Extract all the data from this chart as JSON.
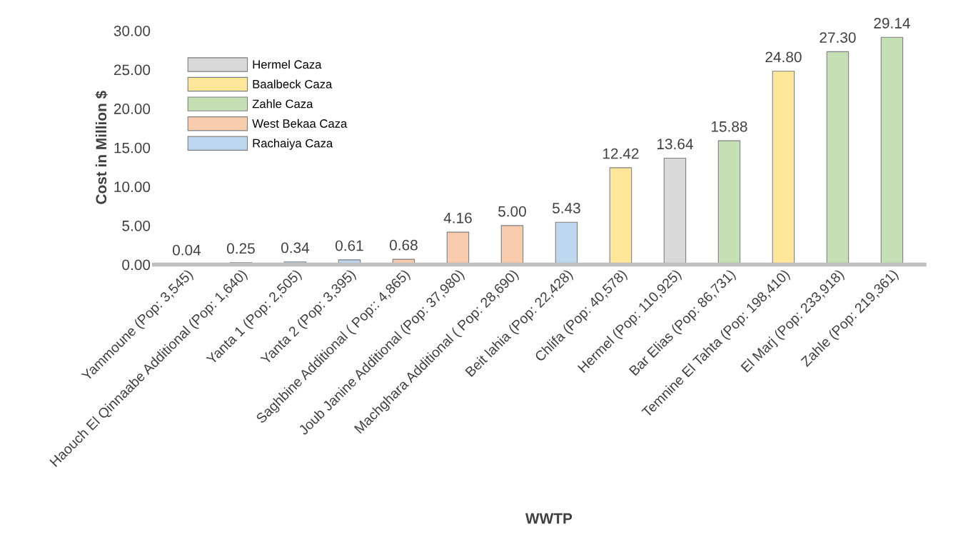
{
  "chart_data": {
    "type": "bar",
    "stacked": true,
    "xlabel": "WWTP",
    "ylabel": "Cost in Million $",
    "categories": [
      "Yammoune (Pop: 3,545)",
      "Haouch El Qinnaabe Additional (Pop: 1,640)",
      "Yanta 1 (Pop: 2,505)",
      "Yanta 2 (Pop: 3,395)",
      "Saghbine Additional ( Pop:: 4,865)",
      "Joub Janine Additional (Pop: 37,980)",
      "Machghara Additional ( Pop: 28,690)",
      "Beit lahia (Pop: 22,428)",
      "Chlifa (Pop: 40,578)",
      "Hermel (Pop: 110,925)",
      "Bar Elias (Pop: 86,731)",
      "Temnine El Tahta (Pop: 198,410)",
      "El Marj (Pop: 233,918)",
      "Zahle (Pop: 219,361)"
    ],
    "series": [
      {
        "name": "Hermel Caza",
        "color": "#d9d9d9",
        "values": [
          null,
          null,
          null,
          null,
          null,
          null,
          null,
          null,
          null,
          13.64,
          null,
          null,
          null,
          null
        ],
        "value_labels": [
          null,
          null,
          null,
          null,
          null,
          null,
          null,
          null,
          null,
          "13.64",
          null,
          null,
          null,
          null
        ]
      },
      {
        "name": "Baalbeck Caza",
        "color": "#ffe699",
        "values": [
          0.04,
          null,
          null,
          null,
          null,
          null,
          null,
          null,
          12.42,
          null,
          null,
          24.8,
          null,
          null
        ],
        "value_labels": [
          "0.04",
          null,
          null,
          null,
          null,
          null,
          null,
          null,
          "12.42",
          null,
          null,
          "24.80",
          null,
          null
        ]
      },
      {
        "name": "Zahle Caza",
        "color": "#c5e0b4",
        "values": [
          null,
          null,
          null,
          null,
          null,
          null,
          null,
          null,
          null,
          null,
          15.88,
          null,
          27.3,
          29.14
        ],
        "value_labels": [
          null,
          null,
          null,
          null,
          null,
          null,
          null,
          null,
          null,
          null,
          "15.88",
          null,
          "27.30",
          "29.14"
        ]
      },
      {
        "name": "West Bekaa Caza",
        "color": "#f8cbad",
        "values": [
          null,
          null,
          null,
          null,
          0.68,
          4.16,
          5.0,
          null,
          null,
          null,
          null,
          null,
          null,
          null
        ],
        "value_labels": [
          null,
          null,
          null,
          null,
          "0.68",
          "4.16",
          "5.00",
          null,
          null,
          null,
          null,
          null,
          null,
          null
        ]
      },
      {
        "name": "Rachaiya Caza",
        "color": "#bdd7ee",
        "values": [
          null,
          0.25,
          0.34,
          0.61,
          null,
          null,
          null,
          5.43,
          null,
          null,
          null,
          null,
          null,
          null
        ],
        "value_labels": [
          null,
          "0.25",
          "0.34",
          "0.61",
          null,
          null,
          null,
          "5.43",
          null,
          null,
          null,
          null,
          null,
          null
        ]
      }
    ],
    "ylim": [
      0,
      30
    ],
    "yticks": [
      {
        "value": 0,
        "label": "0.00"
      },
      {
        "value": 5,
        "label": "5.00"
      },
      {
        "value": 10,
        "label": "10.00"
      },
      {
        "value": 15,
        "label": "15.00"
      },
      {
        "value": 20,
        "label": "20.00"
      },
      {
        "value": 25,
        "label": "25.00"
      },
      {
        "value": 30,
        "label": "30.00"
      }
    ],
    "legend": "top left"
  }
}
